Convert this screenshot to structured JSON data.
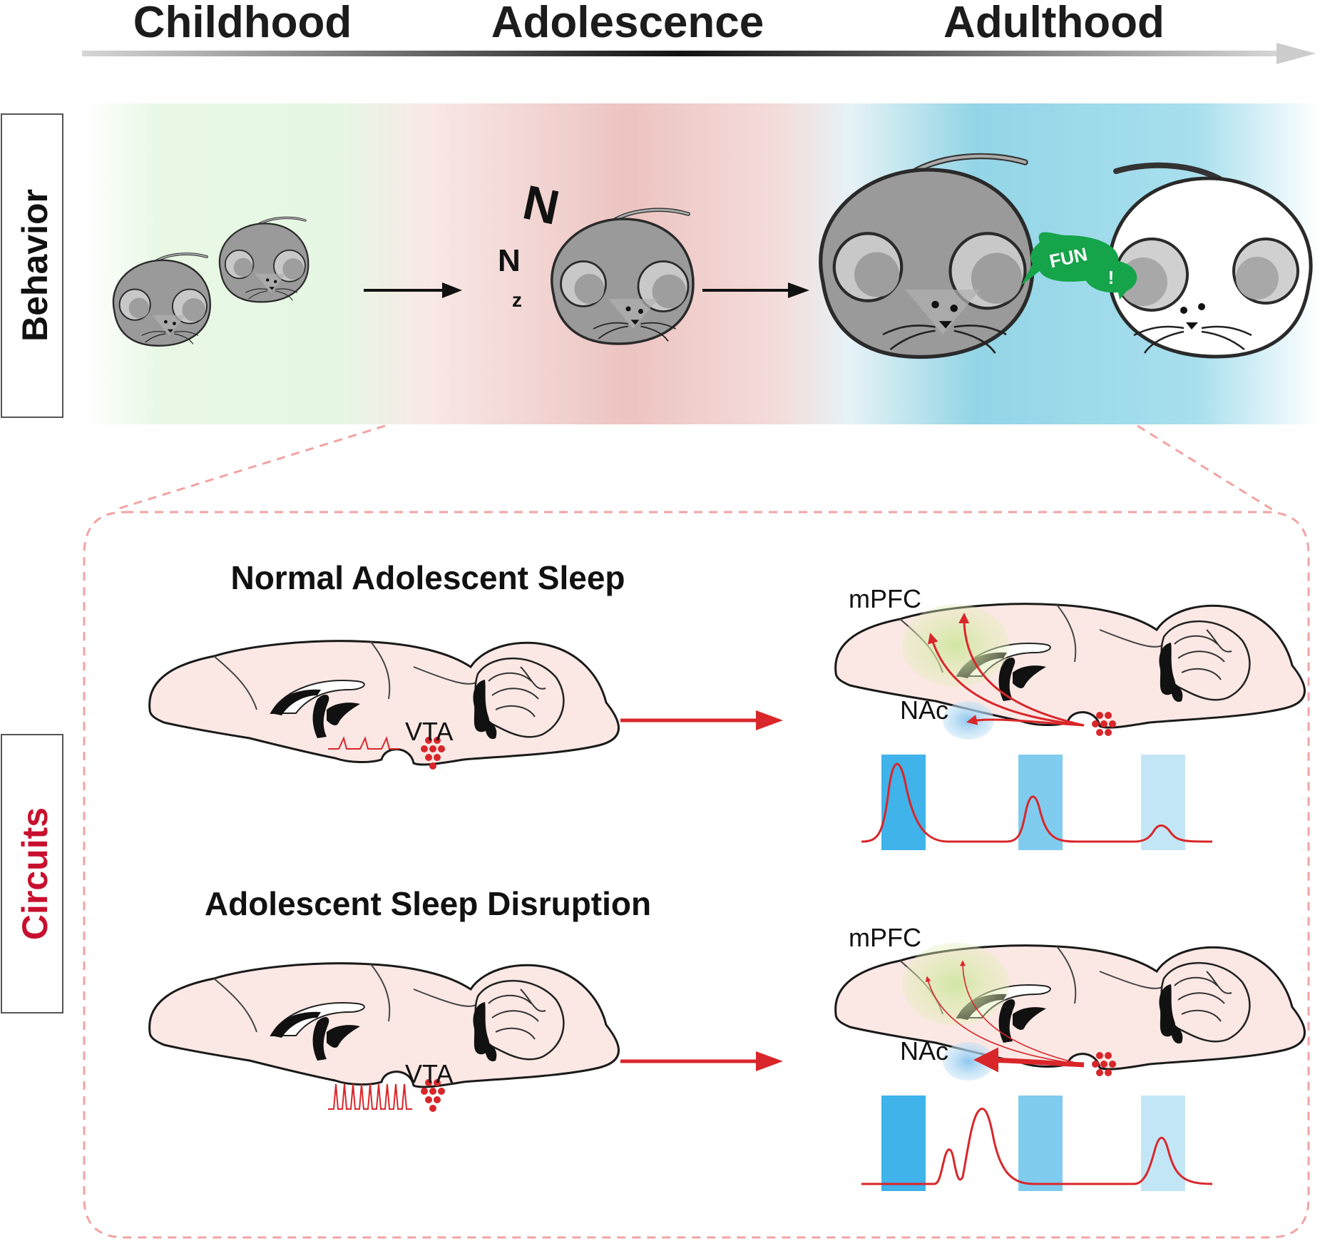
{
  "stages": [
    "Childhood",
    "Adolescence",
    "Adulthood"
  ],
  "side_labels": {
    "behavior": "Behavior",
    "circuits": "Circuits"
  },
  "speech": {
    "fun": "FUN",
    "exclaim": "!"
  },
  "sleep_letters": [
    "N",
    "N",
    "z"
  ],
  "normal": {
    "title": "Normal Adolescent Sleep",
    "vta": "VTA",
    "mpfc": "mPFC",
    "nac": "NAc"
  },
  "disrupted": {
    "title": "Adolescent Sleep Disruption",
    "vta": "VTA",
    "mpfc": "mPFC",
    "nac": "NAc"
  },
  "colors": {
    "childhood_bg": "#e3f8e0",
    "adolescence_bg": "#edc4c1",
    "adulthood_bg": "#92d5e6",
    "brain_fill": "#fbe8e4",
    "mouse_gray": "#9a9a9a",
    "red": "#d9262a",
    "circuits_label": "#c8102e",
    "frame_dash": "#f2a3a3",
    "bar_dark": "#3fb3ea",
    "bar_mid": "#80ccef",
    "bar_light": "#c3e6f6",
    "speech_green": "#16a44a"
  }
}
